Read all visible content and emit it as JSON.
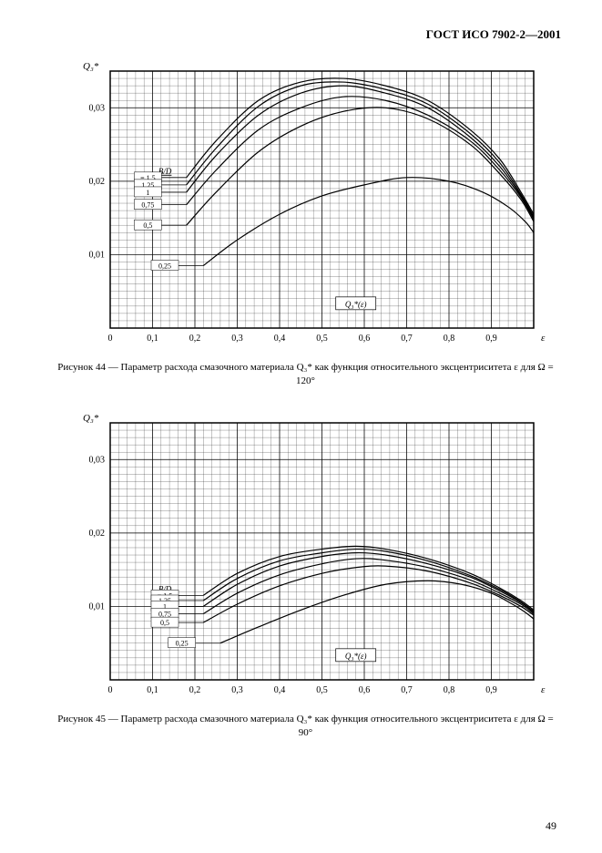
{
  "doc_header": "ГОСТ ИСО 7902-2—2001",
  "page_number": "49",
  "chart_top": {
    "type": "line",
    "y_axis_label": "Q₃*",
    "x_axis_label": "ε",
    "inner_label": "Q₃*(ε)",
    "x_min": 0,
    "x_max": 1.0,
    "y_min": 0,
    "y_max": 0.035,
    "x_ticks": [
      0,
      0.1,
      0.2,
      0.3,
      0.4,
      0.5,
      0.6,
      0.7,
      0.8,
      0.9
    ],
    "x_tick_labels": [
      "0",
      "0,1",
      "0,2",
      "0,3",
      "0,4",
      "0,5",
      "0,6",
      "0,7",
      "0,8",
      "0,9"
    ],
    "y_ticks": [
      0.01,
      0.02,
      0.03
    ],
    "y_tick_labels": [
      "0,01",
      "0,02",
      "0,03"
    ],
    "series_label_header": "B/D",
    "series": [
      {
        "label": "= 1,5",
        "start_x": 0.18,
        "data": [
          [
            0.18,
            0.0205
          ],
          [
            0.25,
            0.0255
          ],
          [
            0.35,
            0.031
          ],
          [
            0.45,
            0.0335
          ],
          [
            0.55,
            0.034
          ],
          [
            0.65,
            0.033
          ],
          [
            0.75,
            0.031
          ],
          [
            0.85,
            0.027
          ],
          [
            0.92,
            0.023
          ],
          [
            0.97,
            0.0185
          ],
          [
            1.0,
            0.0155
          ]
        ]
      },
      {
        "label": "1,25",
        "start_x": 0.18,
        "data": [
          [
            0.18,
            0.0195
          ],
          [
            0.25,
            0.0245
          ],
          [
            0.35,
            0.0302
          ],
          [
            0.45,
            0.033
          ],
          [
            0.55,
            0.0335
          ],
          [
            0.65,
            0.0325
          ],
          [
            0.75,
            0.0305
          ],
          [
            0.85,
            0.0265
          ],
          [
            0.92,
            0.0225
          ],
          [
            0.97,
            0.0182
          ],
          [
            1.0,
            0.0152
          ]
        ]
      },
      {
        "label": "1",
        "start_x": 0.18,
        "data": [
          [
            0.18,
            0.0185
          ],
          [
            0.25,
            0.0235
          ],
          [
            0.35,
            0.029
          ],
          [
            0.45,
            0.032
          ],
          [
            0.55,
            0.033
          ],
          [
            0.65,
            0.032
          ],
          [
            0.75,
            0.03
          ],
          [
            0.85,
            0.026
          ],
          [
            0.92,
            0.022
          ],
          [
            0.97,
            0.018
          ],
          [
            1.0,
            0.015
          ]
        ]
      },
      {
        "label": "0,75",
        "start_x": 0.18,
        "data": [
          [
            0.18,
            0.0168
          ],
          [
            0.25,
            0.0215
          ],
          [
            0.35,
            0.027
          ],
          [
            0.45,
            0.03
          ],
          [
            0.55,
            0.0315
          ],
          [
            0.65,
            0.031
          ],
          [
            0.75,
            0.029
          ],
          [
            0.85,
            0.0255
          ],
          [
            0.92,
            0.0215
          ],
          [
            0.97,
            0.0178
          ],
          [
            1.0,
            0.0148
          ]
        ]
      },
      {
        "label": "0,5",
        "start_x": 0.18,
        "data": [
          [
            0.18,
            0.014
          ],
          [
            0.25,
            0.0185
          ],
          [
            0.35,
            0.024
          ],
          [
            0.45,
            0.0275
          ],
          [
            0.55,
            0.0295
          ],
          [
            0.65,
            0.03
          ],
          [
            0.75,
            0.0285
          ],
          [
            0.85,
            0.025
          ],
          [
            0.92,
            0.021
          ],
          [
            0.97,
            0.0175
          ],
          [
            1.0,
            0.0145
          ]
        ]
      },
      {
        "label": "0,25",
        "start_x": 0.22,
        "data": [
          [
            0.22,
            0.0085
          ],
          [
            0.3,
            0.012
          ],
          [
            0.4,
            0.0155
          ],
          [
            0.5,
            0.018
          ],
          [
            0.6,
            0.0195
          ],
          [
            0.7,
            0.0205
          ],
          [
            0.8,
            0.02
          ],
          [
            0.88,
            0.0185
          ],
          [
            0.94,
            0.0165
          ],
          [
            0.98,
            0.0145
          ],
          [
            1.0,
            0.013
          ]
        ]
      }
    ],
    "grid_color": "#000000",
    "background": "#ffffff",
    "line_color": "#000000",
    "line_width": 1.2,
    "caption": "Рисунок 44 — Параметр расхода смазочного материала Q₃* как функция относительного эксцентриситета ε для Ω = 120°"
  },
  "chart_bottom": {
    "type": "line",
    "y_axis_label": "Q₃*",
    "x_axis_label": "ε",
    "inner_label": "Q₃*(ε)",
    "x_min": 0,
    "x_max": 1.0,
    "y_min": 0,
    "y_max": 0.035,
    "x_ticks": [
      0,
      0.1,
      0.2,
      0.3,
      0.4,
      0.5,
      0.6,
      0.7,
      0.8,
      0.9
    ],
    "x_tick_labels": [
      "0",
      "0,1",
      "0,2",
      "0,3",
      "0,4",
      "0,5",
      "0,6",
      "0,7",
      "0,8",
      "0,9"
    ],
    "y_ticks": [
      0.01,
      0.02,
      0.03
    ],
    "y_tick_labels": [
      "0,01",
      "0,02",
      "0,03"
    ],
    "series_label_header": "B/D",
    "series": [
      {
        "label": "= 1,5",
        "start_x": 0.22,
        "data": [
          [
            0.22,
            0.0115
          ],
          [
            0.3,
            0.0145
          ],
          [
            0.4,
            0.0168
          ],
          [
            0.5,
            0.0178
          ],
          [
            0.58,
            0.0182
          ],
          [
            0.65,
            0.0178
          ],
          [
            0.75,
            0.0165
          ],
          [
            0.85,
            0.0145
          ],
          [
            0.92,
            0.0125
          ],
          [
            0.97,
            0.0108
          ],
          [
            1.0,
            0.0095
          ]
        ]
      },
      {
        "label": "1,25",
        "start_x": 0.22,
        "data": [
          [
            0.22,
            0.0108
          ],
          [
            0.3,
            0.0138
          ],
          [
            0.4,
            0.0162
          ],
          [
            0.5,
            0.0173
          ],
          [
            0.58,
            0.0178
          ],
          [
            0.65,
            0.0175
          ],
          [
            0.75,
            0.0162
          ],
          [
            0.85,
            0.0142
          ],
          [
            0.92,
            0.0123
          ],
          [
            0.97,
            0.0106
          ],
          [
            1.0,
            0.0093
          ]
        ]
      },
      {
        "label": "1",
        "start_x": 0.22,
        "data": [
          [
            0.22,
            0.01
          ],
          [
            0.3,
            0.013
          ],
          [
            0.4,
            0.0155
          ],
          [
            0.5,
            0.0168
          ],
          [
            0.58,
            0.0173
          ],
          [
            0.65,
            0.017
          ],
          [
            0.75,
            0.0158
          ],
          [
            0.85,
            0.014
          ],
          [
            0.92,
            0.0121
          ],
          [
            0.97,
            0.0105
          ],
          [
            1.0,
            0.0092
          ]
        ]
      },
      {
        "label": "0,75",
        "start_x": 0.22,
        "data": [
          [
            0.22,
            0.009
          ],
          [
            0.3,
            0.0118
          ],
          [
            0.4,
            0.0143
          ],
          [
            0.5,
            0.0158
          ],
          [
            0.58,
            0.0165
          ],
          [
            0.65,
            0.0163
          ],
          [
            0.75,
            0.0153
          ],
          [
            0.85,
            0.0136
          ],
          [
            0.92,
            0.0118
          ],
          [
            0.97,
            0.0103
          ],
          [
            1.0,
            0.009
          ]
        ]
      },
      {
        "label": "0,5",
        "start_x": 0.22,
        "data": [
          [
            0.22,
            0.0078
          ],
          [
            0.3,
            0.0103
          ],
          [
            0.4,
            0.0128
          ],
          [
            0.5,
            0.0145
          ],
          [
            0.58,
            0.0153
          ],
          [
            0.65,
            0.0155
          ],
          [
            0.75,
            0.0148
          ],
          [
            0.85,
            0.0132
          ],
          [
            0.92,
            0.0115
          ],
          [
            0.97,
            0.01
          ],
          [
            1.0,
            0.0088
          ]
        ]
      },
      {
        "label": "0,25",
        "start_x": 0.26,
        "data": [
          [
            0.26,
            0.005
          ],
          [
            0.35,
            0.0072
          ],
          [
            0.45,
            0.0095
          ],
          [
            0.55,
            0.0115
          ],
          [
            0.65,
            0.013
          ],
          [
            0.75,
            0.0135
          ],
          [
            0.83,
            0.013
          ],
          [
            0.9,
            0.0118
          ],
          [
            0.95,
            0.0103
          ],
          [
            0.98,
            0.0092
          ],
          [
            1.0,
            0.0083
          ]
        ]
      }
    ],
    "grid_color": "#000000",
    "background": "#ffffff",
    "line_color": "#000000",
    "line_width": 1.2,
    "caption": "Рисунок 45 — Параметр расхода смазочного материала Q₃* как функция относительного эксцентриситета ε для Ω = 90°"
  }
}
